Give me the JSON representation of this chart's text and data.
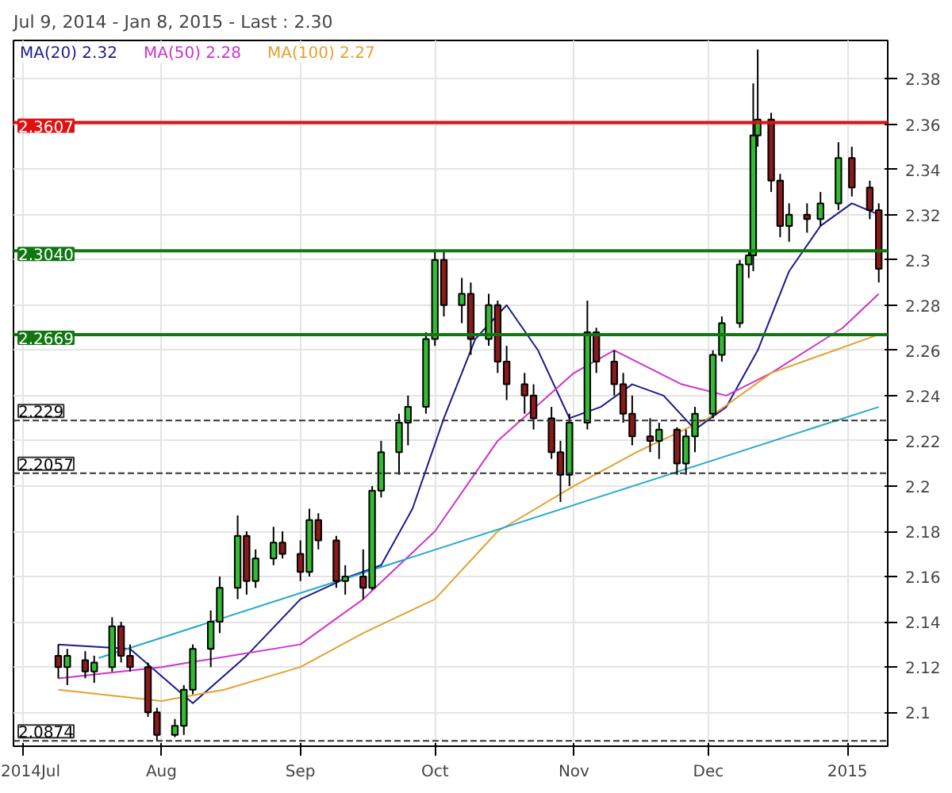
{
  "chart_data": {
    "type": "candlestick",
    "title": "Jul 9, 2014 - Jan 8, 2015 - Last : 2.30",
    "x": [
      "2014-07-09",
      "2014-07-11",
      "2014-07-15",
      "2014-07-17",
      "2014-07-21",
      "2014-07-23",
      "2014-07-25",
      "2014-07-29",
      "2014-07-31",
      "2014-08-04",
      "2014-08-06",
      "2014-08-08",
      "2014-08-12",
      "2014-08-14",
      "2014-08-18",
      "2014-08-20",
      "2014-08-22",
      "2014-08-26",
      "2014-08-28",
      "2014-09-01",
      "2014-09-03",
      "2014-09-05",
      "2014-09-09",
      "2014-09-11",
      "2014-09-15",
      "2014-09-17",
      "2014-09-19",
      "2014-09-23",
      "2014-09-25",
      "2014-09-29",
      "2014-10-01",
      "2014-10-03",
      "2014-10-07",
      "2014-10-09",
      "2014-10-13",
      "2014-10-15",
      "2014-10-17",
      "2014-10-21",
      "2014-10-23",
      "2014-10-27",
      "2014-10-29",
      "2014-10-31",
      "2014-11-04",
      "2014-11-06",
      "2014-11-10",
      "2014-11-12",
      "2014-11-14",
      "2014-11-18",
      "2014-11-20",
      "2014-11-24",
      "2014-11-26",
      "2014-11-28",
      "2014-12-02",
      "2014-12-04",
      "2014-12-08",
      "2014-12-10",
      "2014-12-11",
      "2014-12-12",
      "2014-12-15",
      "2014-12-17",
      "2014-12-19",
      "2014-12-23",
      "2014-12-26",
      "2014-12-30",
      "2015-01-02",
      "2015-01-06",
      "2015-01-08"
    ],
    "ohlc": [
      [
        2.125,
        2.13,
        2.115,
        2.12
      ],
      [
        2.12,
        2.128,
        2.112,
        2.125
      ],
      [
        2.123,
        2.127,
        2.115,
        2.118
      ],
      [
        2.118,
        2.125,
        2.113,
        2.122
      ],
      [
        2.12,
        2.142,
        2.118,
        2.138
      ],
      [
        2.138,
        2.14,
        2.122,
        2.125
      ],
      [
        2.125,
        2.13,
        2.118,
        2.12
      ],
      [
        2.12,
        2.122,
        2.098,
        2.1
      ],
      [
        2.1,
        2.102,
        2.0874,
        2.09
      ],
      [
        2.09,
        2.097,
        2.089,
        2.094
      ],
      [
        2.094,
        2.112,
        2.09,
        2.11
      ],
      [
        2.11,
        2.13,
        2.108,
        2.128
      ],
      [
        2.128,
        2.145,
        2.12,
        2.14
      ],
      [
        2.14,
        2.16,
        2.135,
        2.155
      ],
      [
        2.155,
        2.187,
        2.15,
        2.178
      ],
      [
        2.178,
        2.18,
        2.152,
        2.158
      ],
      [
        2.158,
        2.172,
        2.155,
        2.168
      ],
      [
        2.168,
        2.182,
        2.165,
        2.175
      ],
      [
        2.175,
        2.18,
        2.168,
        2.17
      ],
      [
        2.17,
        2.176,
        2.158,
        2.162
      ],
      [
        2.162,
        2.19,
        2.16,
        2.185
      ],
      [
        2.185,
        2.188,
        2.172,
        2.176
      ],
      [
        2.176,
        2.178,
        2.155,
        2.158
      ],
      [
        2.158,
        2.165,
        2.152,
        2.16
      ],
      [
        2.16,
        2.172,
        2.15,
        2.155
      ],
      [
        2.155,
        2.2,
        2.154,
        2.198
      ],
      [
        2.198,
        2.22,
        2.195,
        2.215
      ],
      [
        2.215,
        2.232,
        2.205,
        2.228
      ],
      [
        2.228,
        2.24,
        2.218,
        2.235
      ],
      [
        2.235,
        2.268,
        2.232,
        2.265
      ],
      [
        2.265,
        2.304,
        2.262,
        2.3
      ],
      [
        2.3,
        2.304,
        2.275,
        2.28
      ],
      [
        2.28,
        2.292,
        2.272,
        2.285
      ],
      [
        2.285,
        2.29,
        2.258,
        2.265
      ],
      [
        2.265,
        2.285,
        2.262,
        2.28
      ],
      [
        2.28,
        2.282,
        2.25,
        2.255
      ],
      [
        2.255,
        2.262,
        2.238,
        2.245
      ],
      [
        2.245,
        2.25,
        2.232,
        2.24
      ],
      [
        2.24,
        2.245,
        2.225,
        2.23
      ],
      [
        2.23,
        2.235,
        2.212,
        2.215
      ],
      [
        2.215,
        2.22,
        2.193,
        2.205
      ],
      [
        2.205,
        2.232,
        2.2,
        2.228
      ],
      [
        2.228,
        2.282,
        2.225,
        2.268
      ],
      [
        2.268,
        2.27,
        2.25,
        2.255
      ],
      [
        2.255,
        2.26,
        2.24,
        2.245
      ],
      [
        2.245,
        2.25,
        2.228,
        2.232
      ],
      [
        2.232,
        2.24,
        2.218,
        2.222
      ],
      [
        2.222,
        2.23,
        2.215,
        2.22
      ],
      [
        2.22,
        2.228,
        2.212,
        2.225
      ],
      [
        2.225,
        2.226,
        2.205,
        2.21
      ],
      [
        2.21,
        2.225,
        2.205,
        2.222
      ],
      [
        2.222,
        2.235,
        2.215,
        2.232
      ],
      [
        2.232,
        2.26,
        2.23,
        2.258
      ],
      [
        2.258,
        2.275,
        2.255,
        2.272
      ],
      [
        2.272,
        2.3,
        2.27,
        2.298
      ],
      [
        2.298,
        2.304,
        2.292,
        2.302
      ],
      [
        2.302,
        2.378,
        2.295,
        2.355
      ],
      [
        2.355,
        2.393,
        2.35,
        2.362
      ],
      [
        2.362,
        2.365,
        2.33,
        2.335
      ],
      [
        2.335,
        2.338,
        2.31,
        2.315
      ],
      [
        2.315,
        2.325,
        2.308,
        2.32
      ],
      [
        2.32,
        2.325,
        2.312,
        2.318
      ],
      [
        2.318,
        2.33,
        2.315,
        2.325
      ],
      [
        2.325,
        2.352,
        2.322,
        2.345
      ],
      [
        2.345,
        2.35,
        2.328,
        2.332
      ],
      [
        2.332,
        2.335,
        2.318,
        2.322
      ],
      [
        2.322,
        2.325,
        2.29,
        2.296
      ]
    ],
    "series": [
      {
        "name": "MA(20)  2.32",
        "type": "line",
        "color": "#1a1a8c",
        "x": [
          "2014-07-09",
          "2014-07-25",
          "2014-08-08",
          "2014-08-20",
          "2014-09-01",
          "2014-09-12",
          "2014-09-19",
          "2014-09-26",
          "2014-10-03",
          "2014-10-10",
          "2014-10-17",
          "2014-10-24",
          "2014-10-31",
          "2014-11-07",
          "2014-11-14",
          "2014-11-21",
          "2014-11-28",
          "2014-12-05",
          "2014-12-12",
          "2014-12-19",
          "2014-12-26",
          "2015-01-02",
          "2015-01-08"
        ],
        "values": [
          2.13,
          2.128,
          2.104,
          2.125,
          2.15,
          2.16,
          2.165,
          2.19,
          2.23,
          2.265,
          2.28,
          2.26,
          2.23,
          2.235,
          2.245,
          2.24,
          2.225,
          2.235,
          2.26,
          2.295,
          2.315,
          2.325,
          2.32
        ]
      },
      {
        "name": "MA(50)  2.28",
        "type": "line",
        "color": "#cc33cc",
        "x": [
          "2014-07-09",
          "2014-08-01",
          "2014-09-01",
          "2014-09-15",
          "2014-10-01",
          "2014-10-15",
          "2014-11-01",
          "2014-11-10",
          "2014-11-25",
          "2014-12-05",
          "2014-12-15",
          "2014-12-31",
          "2015-01-08"
        ],
        "values": [
          2.115,
          2.12,
          2.13,
          2.15,
          2.18,
          2.22,
          2.25,
          2.26,
          2.245,
          2.24,
          2.25,
          2.27,
          2.285
        ]
      },
      {
        "name": "MA(100)  2.27",
        "type": "line",
        "color": "#e6a030",
        "x": [
          "2014-07-09",
          "2014-08-01",
          "2014-08-15",
          "2014-09-01",
          "2014-09-15",
          "2014-10-01",
          "2014-10-15",
          "2014-11-01",
          "2014-11-15",
          "2014-12-01",
          "2014-12-15",
          "2015-01-08"
        ],
        "values": [
          2.11,
          2.105,
          2.11,
          2.12,
          2.135,
          2.15,
          2.18,
          2.2,
          2.215,
          2.23,
          2.25,
          2.267
        ]
      },
      {
        "type": "line",
        "color": "#22aacc",
        "x": [
          "2014-07-18",
          "2015-01-08"
        ],
        "values": [
          2.124,
          2.235
        ]
      }
    ],
    "ref_lines": [
      {
        "axis": "y",
        "value": 2.3607,
        "label": "2.3607",
        "color": "#dd1111",
        "line_style": "solid"
      },
      {
        "axis": "y",
        "value": 2.304,
        "label": "2.3040",
        "color": "#117711",
        "line_style": "solid"
      },
      {
        "axis": "y",
        "value": 2.2669,
        "label": "2.2669",
        "color": "#117711",
        "line_style": "solid"
      },
      {
        "axis": "y",
        "value": 2.229,
        "label": "2.229",
        "color": "#333333",
        "line_style": "dashed"
      },
      {
        "axis": "y",
        "value": 2.2057,
        "label": "2.2057",
        "color": "#333333",
        "line_style": "dashed"
      },
      {
        "axis": "y",
        "value": 2.0874,
        "label": "2.0874",
        "color": "#333333",
        "line_style": "dashed"
      }
    ],
    "xlim": [
      "2014-06-29",
      "2015-01-10"
    ],
    "xticks": [
      {
        "value": "2014-07-01",
        "label": "2014Jul"
      },
      {
        "value": "2014-08-01",
        "label": "Aug"
      },
      {
        "value": "2014-09-01",
        "label": "Sep"
      },
      {
        "value": "2014-10-01",
        "label": "Oct"
      },
      {
        "value": "2014-11-01",
        "label": "Nov"
      },
      {
        "value": "2014-12-01",
        "label": "Dec"
      },
      {
        "value": "2015-01-01",
        "label": "2015"
      }
    ],
    "ylim": [
      2.085,
      2.397
    ],
    "yticks": [
      2.1,
      2.12,
      2.14,
      2.16,
      2.18,
      2.2,
      2.22,
      2.24,
      2.26,
      2.28,
      2.3,
      2.32,
      2.34,
      2.36,
      2.38
    ],
    "grid": true,
    "legend": "top left"
  }
}
